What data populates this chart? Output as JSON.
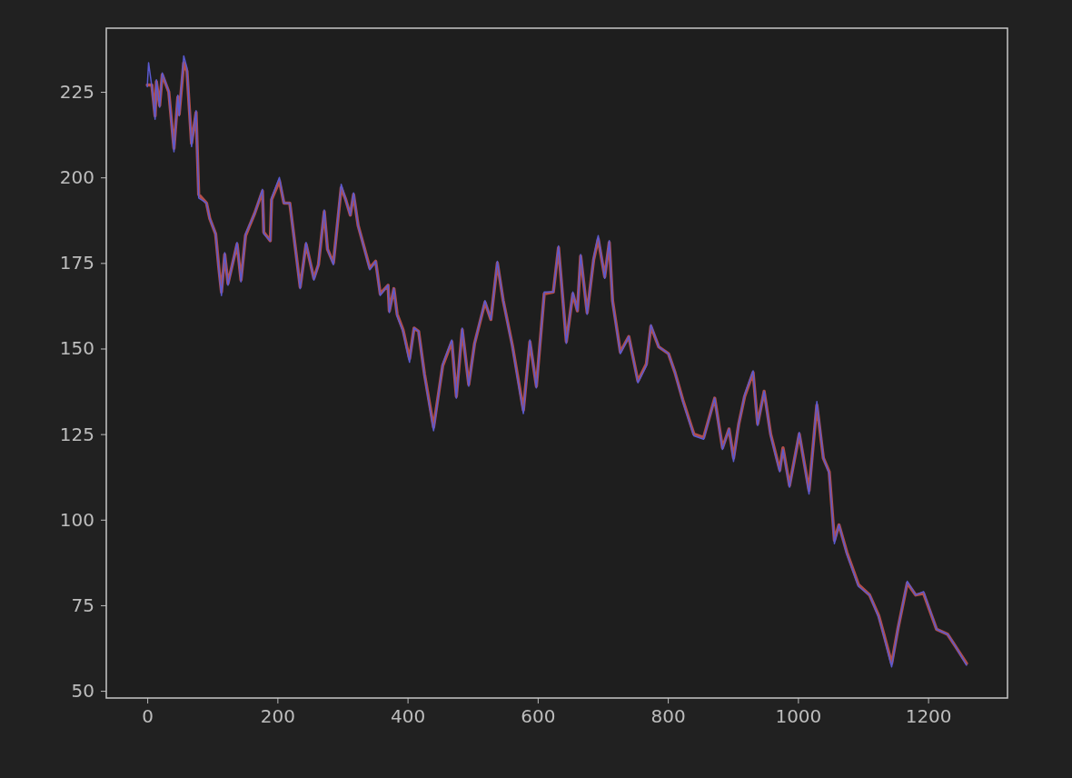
{
  "chart_data": {
    "type": "line",
    "xlim": [
      -63,
      1322
    ],
    "ylim": [
      47.9,
      243.6
    ],
    "xticks": [
      0,
      200,
      400,
      600,
      800,
      1000,
      1200
    ],
    "yticks": [
      50,
      75,
      100,
      125,
      150,
      175,
      200,
      225
    ],
    "grid": false,
    "marker": "none",
    "line_style": "solid",
    "series": [
      {
        "color": "#5a5ad0",
        "x": [
          0,
          2,
          7,
          12,
          14,
          19,
          23,
          33,
          41,
          47,
          49,
          56,
          61,
          68,
          75,
          79,
          91,
          96,
          105,
          110,
          114,
          119,
          124,
          138,
          144,
          151,
          165,
          177,
          179,
          189,
          191,
          203,
          210,
          219,
          235,
          244,
          256,
          263,
          272,
          277,
          286,
          298,
          305,
          312,
          317,
          324,
          342,
          351,
          358,
          370,
          372,
          379,
          384,
          393,
          403,
          410,
          417,
          426,
          440,
          454,
          468,
          475,
          484,
          494,
          503,
          519,
          528,
          538,
          547,
          561,
          578,
          588,
          598,
          610,
          624,
          632,
          644,
          654,
          661,
          666,
          676,
          686,
          693,
          703,
          710,
          715,
          727,
          740,
          754,
          767,
          774,
          786,
          801,
          811,
          823,
          840,
          855,
          872,
          884,
          894,
          901,
          909,
          918,
          931,
          938,
          948,
          958,
          972,
          977,
          987,
          1002,
          1017,
          1029,
          1039,
          1048,
          1056,
          1063,
          1075,
          1093,
          1110,
          1124,
          1132,
          1144,
          1154,
          1168,
          1181,
          1193,
          1213,
          1230,
          1242,
          1259
        ],
        "values": [
          226.5,
          233.5,
          226.5,
          217,
          228.5,
          220.5,
          230.5,
          225,
          207.5,
          224,
          218,
          235.5,
          232,
          209,
          219.5,
          194,
          192.5,
          188,
          183.5,
          173,
          165.5,
          178,
          168.5,
          181,
          169.5,
          183.5,
          189.5,
          196.5,
          183.5,
          181.5,
          194,
          200,
          192.5,
          192.5,
          167.5,
          181,
          170,
          174.5,
          190.5,
          179,
          174.5,
          198,
          193.5,
          189,
          195.5,
          186,
          173,
          175.5,
          165.5,
          168.5,
          160.5,
          167.5,
          159.5,
          155,
          146,
          156,
          155,
          142,
          126,
          145.5,
          152.5,
          135.5,
          156,
          139,
          151.5,
          164,
          158.5,
          175.5,
          164,
          150.5,
          131,
          152.5,
          138.5,
          166.5,
          166.5,
          180,
          151.5,
          166.5,
          161,
          177.5,
          160,
          176.5,
          183,
          170.5,
          181.5,
          163.5,
          148.5,
          153.5,
          140,
          145,
          157,
          150.5,
          148.5,
          143,
          134.5,
          124.5,
          123.5,
          135.5,
          120.5,
          126.5,
          117,
          128,
          136.5,
          143.5,
          127.5,
          137.5,
          124.5,
          114,
          120.5,
          109.5,
          125.5,
          107.5,
          134.5,
          118,
          113.5,
          93,
          98.5,
          90,
          80.5,
          78,
          71.5,
          66,
          57,
          68.5,
          82,
          78,
          79,
          68,
          66.5,
          63,
          57.5
        ]
      },
      {
        "color": "#b24f4b",
        "x": [
          0,
          7,
          12,
          14,
          19,
          23,
          33,
          41,
          47,
          49,
          56,
          61,
          68,
          75,
          79,
          91,
          96,
          105,
          110,
          114,
          119,
          124,
          138,
          144,
          151,
          165,
          177,
          179,
          189,
          191,
          203,
          210,
          219,
          235,
          244,
          256,
          263,
          272,
          277,
          286,
          298,
          305,
          312,
          317,
          324,
          342,
          351,
          358,
          370,
          372,
          379,
          384,
          393,
          403,
          410,
          417,
          426,
          440,
          454,
          468,
          475,
          484,
          494,
          503,
          519,
          528,
          538,
          547,
          561,
          578,
          588,
          598,
          610,
          624,
          632,
          644,
          654,
          661,
          666,
          676,
          686,
          693,
          703,
          710,
          715,
          727,
          740,
          754,
          767,
          774,
          786,
          801,
          811,
          823,
          840,
          855,
          872,
          884,
          894,
          901,
          909,
          918,
          931,
          938,
          948,
          958,
          972,
          977,
          987,
          1002,
          1017,
          1029,
          1039,
          1048,
          1056,
          1063,
          1075,
          1093,
          1110,
          1124,
          1132,
          1144,
          1154,
          1168,
          1181,
          1193,
          1213,
          1230,
          1242,
          1259
        ],
        "values": [
          227,
          227,
          218,
          228,
          221,
          230,
          225,
          208.5,
          223.5,
          218.5,
          233.5,
          231,
          210,
          219,
          195,
          192.5,
          188,
          183.5,
          173.5,
          166.5,
          177.5,
          169,
          180.5,
          170,
          183,
          189.5,
          196,
          184,
          181.5,
          193.5,
          199,
          192.5,
          192.5,
          168,
          180.5,
          170.5,
          174.5,
          190,
          179,
          175,
          197,
          193.5,
          189,
          195,
          186,
          173.5,
          175.5,
          166,
          168.5,
          161,
          167.5,
          160,
          155.5,
          147,
          156,
          155,
          142.5,
          127,
          145,
          152,
          136,
          155.5,
          139.5,
          151.5,
          163.5,
          158.5,
          175,
          164,
          151,
          132,
          152,
          139,
          166,
          166.5,
          179.5,
          152,
          166,
          161,
          177,
          160.5,
          176,
          182,
          171,
          181,
          164,
          149,
          153.5,
          140.5,
          145.5,
          156.5,
          150.5,
          148.5,
          143,
          135,
          125,
          124,
          135.5,
          121,
          126.5,
          118,
          128,
          136,
          143,
          128,
          137.5,
          125,
          114.5,
          121,
          110,
          125,
          108.5,
          133.5,
          118,
          114,
          94,
          98.5,
          90.5,
          81,
          78,
          72,
          66.5,
          58,
          68.5,
          81.5,
          78,
          78.5,
          68,
          66.5,
          63,
          58
        ]
      }
    ]
  }
}
